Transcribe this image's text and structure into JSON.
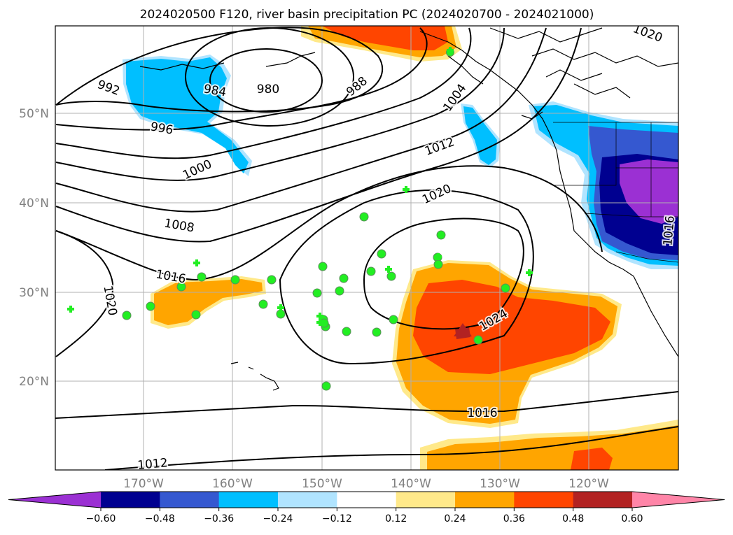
{
  "title": "2024020500 F120, river basin precipitation PC (2024020700 - 2024021000)",
  "lat_labels": [
    "50°N",
    "40°N",
    "30°N",
    "20°N"
  ],
  "lon_labels": [
    "170°W",
    "160°W",
    "150°W",
    "140°W",
    "130°W",
    "120°W"
  ],
  "colorbar": {
    "ticks": [
      "−0.60",
      "−0.48",
      "−0.36",
      "−0.24",
      "−0.12",
      "0.12",
      "0.24",
      "0.36",
      "0.48",
      "0.60"
    ],
    "colors": [
      "#9b30d3",
      "#000090",
      "#3558d0",
      "#00bfff",
      "#b0e4ff",
      "#ffffff",
      "#ffe98a",
      "#ffa500",
      "#ff4500",
      "#b22222",
      "#ff85a8"
    ]
  },
  "contour_labels": [
    {
      "text": "992"
    },
    {
      "text": "984"
    },
    {
      "text": "980"
    },
    {
      "text": "988"
    },
    {
      "text": "1004"
    },
    {
      "text": "996"
    },
    {
      "text": "1000"
    },
    {
      "text": "1012"
    },
    {
      "text": "1020"
    },
    {
      "text": "1008"
    },
    {
      "text": "1016"
    },
    {
      "text": "1020"
    },
    {
      "text": "1024"
    },
    {
      "text": "1016"
    },
    {
      "text": "1012"
    },
    {
      "text": "1020"
    },
    {
      "text": "1016"
    }
  ],
  "station_count_circles": 30,
  "station_count_crosses": 10
}
